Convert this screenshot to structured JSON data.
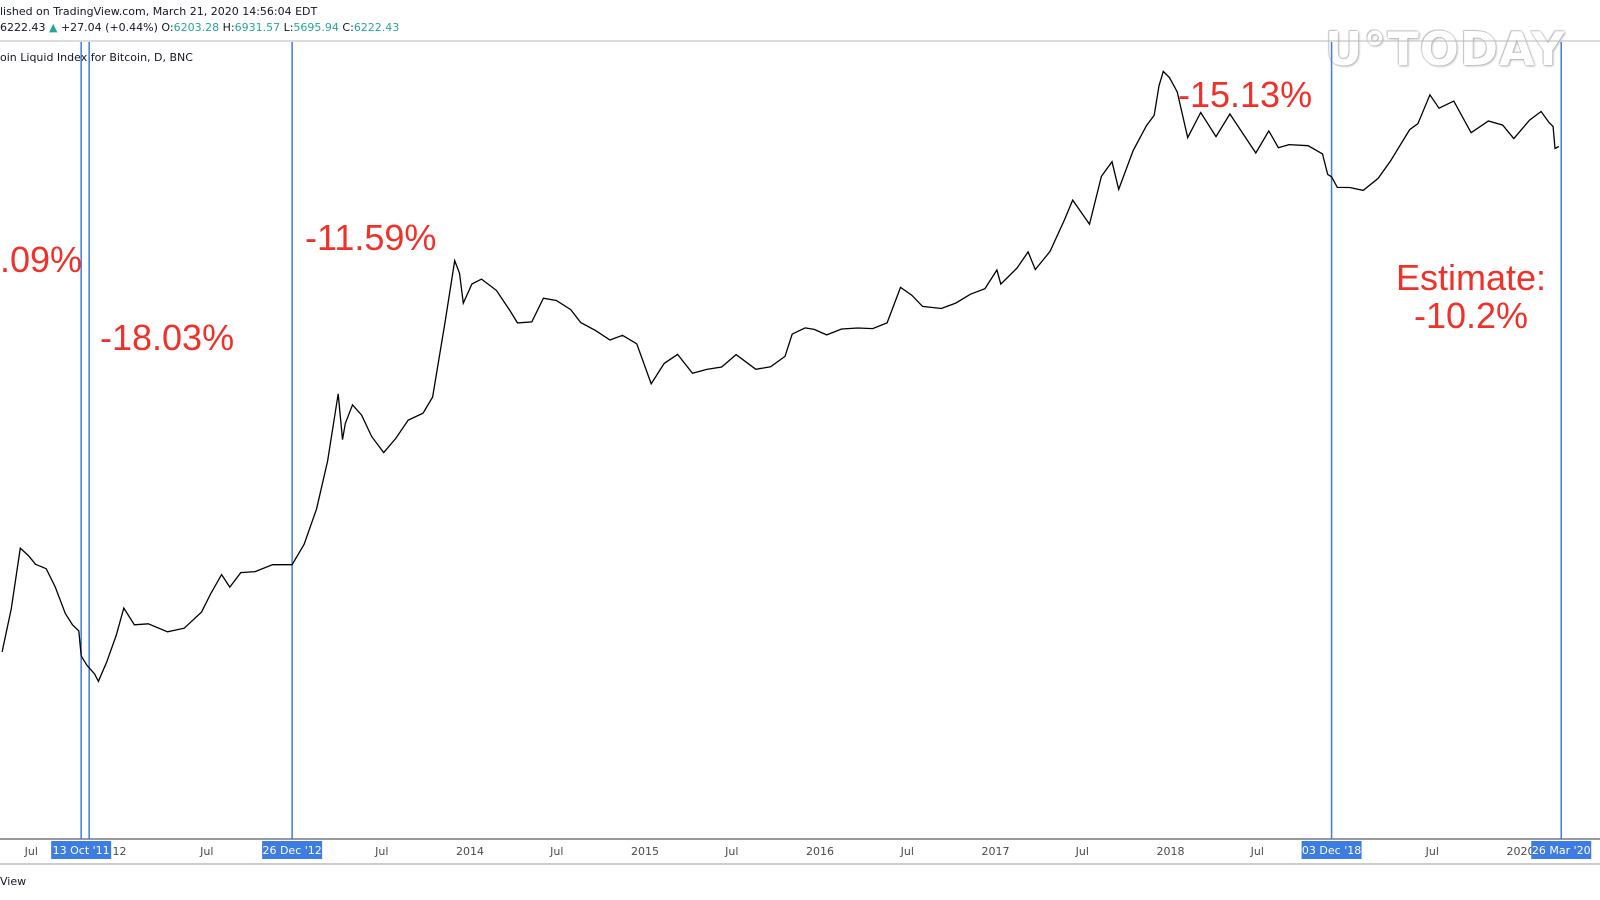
{
  "header": {
    "published": "lished on TradingView.com, March 21, 2020 14:56:04 EDT",
    "price": "6222.43",
    "change_arrow": "▲",
    "change": "+27.04 (+0.44%)",
    "o_label": "O:",
    "o": "6203.28",
    "h_label": "H:",
    "h": "6931.57",
    "l_label": "L:",
    "l": "5695.94",
    "c_label": "C:",
    "c": "6222.43",
    "symbol": "oin Liquid Index for Bitcoin, D, BNC"
  },
  "watermark": "U°TODAY",
  "footer": "View",
  "colors": {
    "line": "#000000",
    "vline": "#3d7ce0",
    "annotation": "#f0312a",
    "ohlc_value": "#26a69a"
  },
  "chart_data": {
    "type": "line",
    "scale": "log",
    "title": "",
    "xlabel": "",
    "ylabel": "",
    "x_tick_labels": [
      "Jul",
      "12",
      "Jul",
      "Jul",
      "2014",
      "Jul",
      "2015",
      "Jul",
      "2016",
      "Jul",
      "2017",
      "Jul",
      "2018",
      "Jul",
      "Jul",
      "2020"
    ],
    "series": [
      {
        "x": [
          "2011-05-01",
          "2011-05-20",
          "2011-06-08",
          "2011-06-25",
          "2011-07-10",
          "2011-08-01",
          "2011-08-20",
          "2011-09-10",
          "2011-09-25",
          "2011-10-08",
          "2011-10-13",
          "2011-10-25",
          "2011-11-10",
          "2011-11-18",
          "2011-12-05",
          "2011-12-25",
          "2012-01-10",
          "2012-02-01",
          "2012-03-01",
          "2012-04-10",
          "2012-05-15",
          "2012-06-20",
          "2012-07-10",
          "2012-08-01",
          "2012-08-18",
          "2012-09-10",
          "2012-10-10",
          "2012-11-15",
          "2012-12-26",
          "2013-01-20",
          "2013-02-15",
          "2013-03-10",
          "2013-04-01",
          "2013-04-10",
          "2013-04-16",
          "2013-05-01",
          "2013-05-20",
          "2013-06-10",
          "2013-07-05",
          "2013-07-30",
          "2013-08-25",
          "2013-09-25",
          "2013-10-15",
          "2013-11-10",
          "2013-11-30",
          "2013-12-10",
          "2013-12-18",
          "2014-01-05",
          "2014-01-25",
          "2014-02-25",
          "2014-03-25",
          "2014-04-10",
          "2014-05-10",
          "2014-06-03",
          "2014-06-30",
          "2014-07-30",
          "2014-08-20",
          "2014-09-20",
          "2014-10-20",
          "2014-11-15",
          "2014-12-15",
          "2015-01-14",
          "2015-02-10",
          "2015-03-10",
          "2015-04-10",
          "2015-05-10",
          "2015-06-10",
          "2015-07-10",
          "2015-08-20",
          "2015-09-20",
          "2015-10-20",
          "2015-11-04",
          "2015-12-01",
          "2015-12-20",
          "2016-01-15",
          "2016-02-15",
          "2016-03-20",
          "2016-04-20",
          "2016-05-20",
          "2016-06-17",
          "2016-07-10",
          "2016-08-02",
          "2016-09-10",
          "2016-10-10",
          "2016-11-10",
          "2016-12-10",
          "2017-01-04",
          "2017-01-12",
          "2017-02-15",
          "2017-03-10",
          "2017-03-25",
          "2017-04-25",
          "2017-05-25",
          "2017-06-11",
          "2017-07-16",
          "2017-08-10",
          "2017-09-01",
          "2017-09-15",
          "2017-10-15",
          "2017-11-12",
          "2017-11-28",
          "2017-12-08",
          "2017-12-17",
          "2017-12-30",
          "2018-01-15",
          "2018-02-06",
          "2018-03-05",
          "2018-04-06",
          "2018-05-05",
          "2018-06-28",
          "2018-07-25",
          "2018-08-14",
          "2018-09-05",
          "2018-10-15",
          "2018-11-14",
          "2018-11-25",
          "2018-12-03",
          "2018-12-15",
          "2019-01-10",
          "2019-02-07",
          "2019-03-10",
          "2019-04-05",
          "2019-05-15",
          "2019-06-01",
          "2019-06-26",
          "2019-07-15",
          "2019-08-15",
          "2019-09-20",
          "2019-10-26",
          "2019-11-25",
          "2019-12-18",
          "2020-01-20",
          "2020-02-13",
          "2020-03-01",
          "2020-03-09",
          "2020-03-13",
          "2020-03-21"
        ],
        "y": [
          3.5,
          7,
          17,
          15,
          13,
          12,
          9,
          6,
          5,
          4.5,
          3.5,
          3.0,
          2.6,
          2.3,
          3.0,
          4.4,
          6.5,
          5,
          5,
          5,
          5.2,
          6.5,
          8.5,
          11,
          9,
          11,
          11,
          12,
          13.5,
          18,
          30,
          60,
          160,
          80,
          100,
          130,
          110,
          90,
          70,
          85,
          110,
          120,
          150,
          450,
          1100,
          900,
          650,
          850,
          900,
          750,
          550,
          450,
          450,
          630,
          600,
          590,
          480,
          420,
          360,
          380,
          330,
          180,
          240,
          270,
          230,
          240,
          245,
          290,
          230,
          235,
          270,
          370,
          400,
          440,
          400,
          430,
          430,
          420,
          450,
          750,
          660,
          550,
          600,
          640,
          720,
          770,
          1000,
          800,
          1000,
          1250,
          950,
          1400,
          2200,
          2900,
          2000,
          4000,
          4900,
          3200,
          5600,
          8000,
          10500,
          16000,
          19500,
          17500,
          14000,
          7000,
          10000,
          6900,
          9500,
          6000,
          8200,
          6300,
          6500,
          6300,
          5500,
          4000,
          3800,
          3200,
          3600,
          3400,
          4000,
          5100,
          8000,
          8600,
          13000,
          10500,
          11500,
          8100,
          9500,
          8800,
          7100,
          9200,
          10300,
          8600,
          8000,
          5700,
          6222
        ]
      }
    ],
    "halving_markers": [
      {
        "date": "2011-10-13",
        "label": "13 Oct '11"
      },
      {
        "date": "2012-12-26",
        "label": "26 Dec '12"
      },
      {
        "date": "2018-12-03",
        "label": "03 Dec '18"
      },
      {
        "date": "2020-03-26",
        "label": "26 Mar '20"
      }
    ],
    "annotations": [
      {
        "text": ".09%"
      },
      {
        "text": "-18.03%"
      },
      {
        "text": "-11.59%"
      },
      {
        "text": "-15.13%"
      },
      {
        "text": "Estimate:"
      },
      {
        "text": "-10.2%"
      }
    ]
  }
}
